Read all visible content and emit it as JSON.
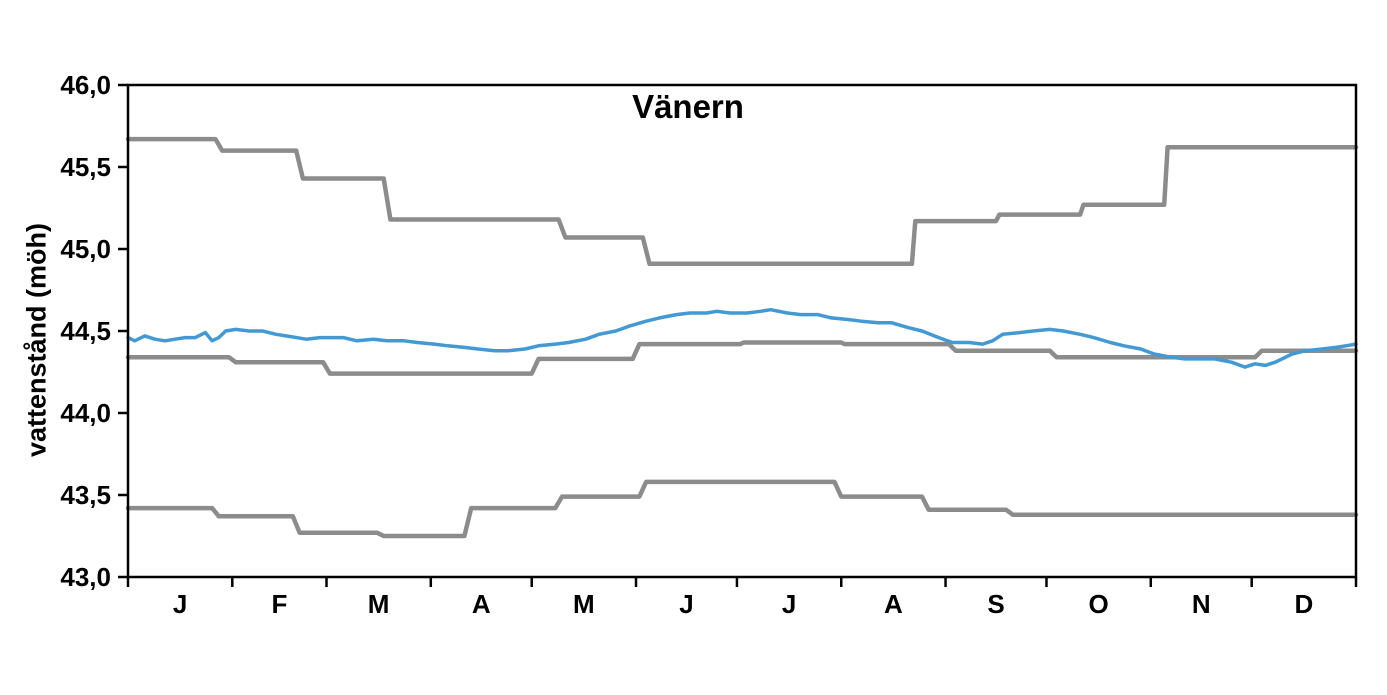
{
  "chart_data": {
    "type": "line",
    "title": "Vänern",
    "xlabel": "",
    "ylabel": "vattenstånd (möh)",
    "ylim": [
      43.0,
      46.0
    ],
    "xlim_days": [
      0,
      365
    ],
    "grid": false,
    "legend_position": "none",
    "ytick_values": [
      43.0,
      43.5,
      44.0,
      44.5,
      45.0,
      45.5,
      46.0
    ],
    "ytick_labels": [
      "43,0",
      "43,5",
      "44,0",
      "44,5",
      "45,0",
      "45,5",
      "46,0"
    ],
    "xtick_days": [
      0,
      31,
      59,
      90,
      120,
      151,
      181,
      212,
      243,
      273,
      304,
      334,
      365
    ],
    "month_labels": [
      "J",
      "F",
      "M",
      "A",
      "M",
      "J",
      "J",
      "A",
      "S",
      "O",
      "N",
      "D"
    ],
    "month_label_days": [
      15.5,
      45,
      74.5,
      105,
      135.5,
      166,
      196.5,
      227.5,
      258,
      288.5,
      319,
      349.5
    ],
    "colors": {
      "water_level": "#4399d3",
      "limits": "#8c8c8c",
      "axis": "#000000",
      "background": "#ffffff"
    },
    "series": [
      {
        "name": "upper-limit-step-line",
        "kind": "step",
        "color_key": "limits",
        "stroke_width": 4.5,
        "points": [
          [
            0,
            45.67
          ],
          [
            26,
            45.67
          ],
          [
            28,
            45.6
          ],
          [
            50,
            45.6
          ],
          [
            52,
            45.43
          ],
          [
            76,
            45.43
          ],
          [
            78,
            45.18
          ],
          [
            128,
            45.18
          ],
          [
            130,
            45.07
          ],
          [
            153,
            45.07
          ],
          [
            155,
            44.91
          ],
          [
            233,
            44.91
          ],
          [
            234,
            45.17
          ],
          [
            258,
            45.17
          ],
          [
            259,
            45.21
          ],
          [
            283,
            45.21
          ],
          [
            284,
            45.27
          ],
          [
            308,
            45.27
          ],
          [
            309,
            45.62
          ],
          [
            365,
            45.62
          ]
        ]
      },
      {
        "name": "middle-mean-step-line",
        "kind": "step",
        "color_key": "limits",
        "stroke_width": 4.5,
        "points": [
          [
            0,
            44.34
          ],
          [
            30,
            44.34
          ],
          [
            32,
            44.31
          ],
          [
            58,
            44.31
          ],
          [
            60,
            44.24
          ],
          [
            120,
            44.24
          ],
          [
            122,
            44.33
          ],
          [
            150,
            44.33
          ],
          [
            152,
            44.42
          ],
          [
            182,
            44.42
          ],
          [
            183,
            44.43
          ],
          [
            212,
            44.43
          ],
          [
            213,
            44.42
          ],
          [
            244,
            44.42
          ],
          [
            246,
            44.38
          ],
          [
            274,
            44.38
          ],
          [
            276,
            44.34
          ],
          [
            335,
            44.34
          ],
          [
            337,
            44.38
          ],
          [
            365,
            44.38
          ]
        ]
      },
      {
        "name": "lower-limit-step-line",
        "kind": "step",
        "color_key": "limits",
        "stroke_width": 4.5,
        "points": [
          [
            0,
            43.42
          ],
          [
            25,
            43.42
          ],
          [
            27,
            43.37
          ],
          [
            49,
            43.37
          ],
          [
            51,
            43.27
          ],
          [
            74,
            43.27
          ],
          [
            76,
            43.25
          ],
          [
            100,
            43.25
          ],
          [
            102,
            43.42
          ],
          [
            127,
            43.42
          ],
          [
            129,
            43.49
          ],
          [
            152,
            43.49
          ],
          [
            154,
            43.58
          ],
          [
            210,
            43.58
          ],
          [
            212,
            43.49
          ],
          [
            236,
            43.49
          ],
          [
            238,
            43.41
          ],
          [
            261,
            43.41
          ],
          [
            263,
            43.38
          ],
          [
            365,
            43.38
          ]
        ]
      },
      {
        "name": "water-level-line",
        "kind": "line",
        "color_key": "water_level",
        "stroke_width": 3.5,
        "points": [
          [
            0,
            44.46
          ],
          [
            2,
            44.44
          ],
          [
            5,
            44.47
          ],
          [
            8,
            44.45
          ],
          [
            11,
            44.44
          ],
          [
            14,
            44.45
          ],
          [
            17,
            44.46
          ],
          [
            20,
            44.46
          ],
          [
            23,
            44.49
          ],
          [
            25,
            44.44
          ],
          [
            27,
            44.46
          ],
          [
            29,
            44.5
          ],
          [
            32,
            44.51
          ],
          [
            36,
            44.5
          ],
          [
            40,
            44.5
          ],
          [
            44,
            44.48
          ],
          [
            47,
            44.47
          ],
          [
            53,
            44.45
          ],
          [
            57,
            44.46
          ],
          [
            61,
            44.46
          ],
          [
            64,
            44.46
          ],
          [
            68,
            44.44
          ],
          [
            73,
            44.45
          ],
          [
            77,
            44.44
          ],
          [
            82,
            44.44
          ],
          [
            86,
            44.43
          ],
          [
            91,
            44.42
          ],
          [
            95,
            44.41
          ],
          [
            100,
            44.4
          ],
          [
            104,
            44.39
          ],
          [
            109,
            44.38
          ],
          [
            113,
            44.38
          ],
          [
            118,
            44.39
          ],
          [
            122,
            44.41
          ],
          [
            127,
            44.42
          ],
          [
            131,
            44.43
          ],
          [
            136,
            44.45
          ],
          [
            140,
            44.48
          ],
          [
            145,
            44.5
          ],
          [
            149,
            44.53
          ],
          [
            154,
            44.56
          ],
          [
            158,
            44.58
          ],
          [
            163,
            44.6
          ],
          [
            167,
            44.61
          ],
          [
            172,
            44.61
          ],
          [
            175,
            44.62
          ],
          [
            179,
            44.61
          ],
          [
            184,
            44.61
          ],
          [
            188,
            44.62
          ],
          [
            191,
            44.63
          ],
          [
            196,
            44.61
          ],
          [
            200,
            44.6
          ],
          [
            205,
            44.6
          ],
          [
            209,
            44.58
          ],
          [
            214,
            44.57
          ],
          [
            218,
            44.56
          ],
          [
            223,
            44.55
          ],
          [
            227,
            44.55
          ],
          [
            232,
            44.52
          ],
          [
            236,
            44.5
          ],
          [
            241,
            44.46
          ],
          [
            245,
            44.43
          ],
          [
            250,
            44.43
          ],
          [
            254,
            44.42
          ],
          [
            257,
            44.44
          ],
          [
            260,
            44.48
          ],
          [
            265,
            44.49
          ],
          [
            269,
            44.5
          ],
          [
            274,
            44.51
          ],
          [
            278,
            44.5
          ],
          [
            283,
            44.48
          ],
          [
            287,
            44.46
          ],
          [
            292,
            44.43
          ],
          [
            296,
            44.41
          ],
          [
            301,
            44.39
          ],
          [
            305,
            44.36
          ],
          [
            310,
            44.34
          ],
          [
            314,
            44.33
          ],
          [
            319,
            44.33
          ],
          [
            323,
            44.33
          ],
          [
            328,
            44.31
          ],
          [
            332,
            44.28
          ],
          [
            335,
            44.3
          ],
          [
            338,
            44.29
          ],
          [
            341,
            44.31
          ],
          [
            346,
            44.36
          ],
          [
            350,
            44.38
          ],
          [
            355,
            44.39
          ],
          [
            359,
            44.4
          ],
          [
            362,
            44.41
          ],
          [
            365,
            44.42
          ]
        ]
      }
    ]
  }
}
